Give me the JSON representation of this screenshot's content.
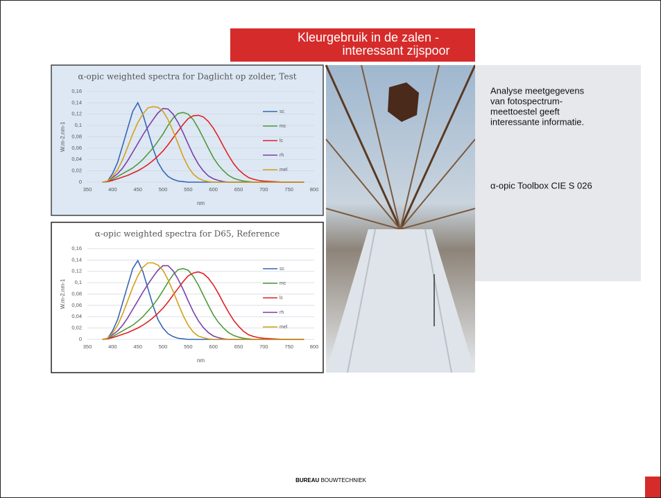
{
  "banner": {
    "lines": [
      "Kleurgebruik in de zalen -",
      "interessant zijspoor"
    ]
  },
  "side_text": {
    "paragraph_lines": [
      "Analyse meetgegevens",
      "van fotospectrum-",
      "meettoestel geeft",
      "interessante informatie."
    ],
    "note": "α-opic Toolbox CIE S 026"
  },
  "footer": {
    "bold": "BUREAU",
    "rest": "BOUWTECHNIEK"
  },
  "chart_data": [
    {
      "type": "line",
      "title": "α-opic weighted spectra for Daglicht op zolder, Test",
      "x_label": "nm",
      "y_label": "W.m-2.nm-1",
      "xlim": [
        350,
        800
      ],
      "xticks": [
        350,
        400,
        450,
        500,
        550,
        600,
        650,
        700,
        750,
        800
      ],
      "ylim": [
        0,
        0.16
      ],
      "yticks": [
        0,
        {
          "value": 0.02,
          "label": "0,02"
        },
        {
          "value": 0.04,
          "label": "0,04"
        },
        {
          "value": 0.06,
          "label": "0,06"
        },
        {
          "value": 0.08,
          "label": "0,08"
        },
        {
          "value": 0.1,
          "label": "0,1"
        },
        {
          "value": 0.12,
          "label": "0,12"
        },
        {
          "value": 0.14,
          "label": "0,14"
        },
        {
          "value": 0.16,
          "label": "0,16"
        }
      ],
      "grid": true,
      "background": "#dde8f4",
      "x": [
        380,
        390,
        400,
        410,
        420,
        430,
        440,
        450,
        460,
        470,
        480,
        490,
        500,
        510,
        520,
        530,
        540,
        550,
        560,
        570,
        580,
        590,
        600,
        610,
        620,
        630,
        640,
        650,
        660,
        670,
        680,
        690,
        700,
        740,
        780
      ],
      "series": [
        {
          "name": "sc",
          "color": "#3465b4",
          "values": [
            0,
            0.002,
            0.015,
            0.035,
            0.065,
            0.095,
            0.125,
            0.14,
            0.12,
            0.09,
            0.06,
            0.035,
            0.02,
            0.01,
            0.005,
            0.002,
            0.001,
            0,
            0,
            0,
            0,
            0,
            0,
            0,
            0,
            0,
            0,
            0,
            0,
            0,
            0,
            0,
            0,
            0,
            0
          ]
        },
        {
          "name": "mc",
          "color": "#4e9a3a",
          "values": [
            0,
            0.001,
            0.005,
            0.01,
            0.015,
            0.02,
            0.025,
            0.032,
            0.04,
            0.05,
            0.06,
            0.072,
            0.085,
            0.1,
            0.113,
            0.121,
            0.123,
            0.12,
            0.11,
            0.095,
            0.078,
            0.06,
            0.043,
            0.03,
            0.02,
            0.012,
            0.007,
            0.004,
            0.002,
            0.001,
            0,
            0,
            0,
            0,
            0
          ]
        },
        {
          "name": "lc",
          "color": "#e02020",
          "values": [
            0,
            0.001,
            0.003,
            0.006,
            0.009,
            0.012,
            0.016,
            0.02,
            0.025,
            0.031,
            0.038,
            0.046,
            0.055,
            0.066,
            0.078,
            0.09,
            0.102,
            0.112,
            0.117,
            0.118,
            0.115,
            0.107,
            0.095,
            0.08,
            0.063,
            0.047,
            0.033,
            0.022,
            0.014,
            0.008,
            0.005,
            0.003,
            0.002,
            0,
            0
          ]
        },
        {
          "name": "rh",
          "color": "#7b3fa8",
          "values": [
            0,
            0.002,
            0.008,
            0.015,
            0.025,
            0.038,
            0.053,
            0.068,
            0.083,
            0.097,
            0.11,
            0.122,
            0.13,
            0.129,
            0.12,
            0.105,
            0.087,
            0.067,
            0.048,
            0.032,
            0.02,
            0.011,
            0.006,
            0.003,
            0.001,
            0,
            0,
            0,
            0,
            0,
            0,
            0,
            0,
            0,
            0
          ]
        },
        {
          "name": "mel",
          "color": "#d4a017",
          "values": [
            0,
            0.002,
            0.01,
            0.022,
            0.04,
            0.062,
            0.085,
            0.105,
            0.12,
            0.131,
            0.133,
            0.132,
            0.125,
            0.11,
            0.09,
            0.068,
            0.045,
            0.027,
            0.014,
            0.007,
            0.003,
            0.001,
            0,
            0,
            0,
            0,
            0,
            0,
            0,
            0,
            0,
            0,
            0,
            0,
            0
          ]
        }
      ]
    },
    {
      "type": "line",
      "title": "α-opic weighted spectra for D65, Reference",
      "x_label": "nm",
      "y_label": "W.m-2.nm-1",
      "xlim": [
        350,
        800
      ],
      "xticks": [
        350,
        400,
        450,
        500,
        550,
        600,
        650,
        700,
        750,
        800
      ],
      "ylim": [
        0,
        0.16
      ],
      "yticks": [
        0,
        {
          "value": 0.02,
          "label": "0,02"
        },
        {
          "value": 0.04,
          "label": "0,04"
        },
        {
          "value": 0.06,
          "label": "0,06"
        },
        {
          "value": 0.08,
          "label": "0,08"
        },
        {
          "value": 0.1,
          "label": "0,1"
        },
        {
          "value": 0.12,
          "label": "0,12"
        },
        {
          "value": 0.14,
          "label": "0,14"
        },
        {
          "value": 0.16,
          "label": "0,16"
        }
      ],
      "grid": true,
      "background": "#ffffff",
      "x": [
        380,
        390,
        400,
        410,
        420,
        430,
        440,
        450,
        460,
        470,
        480,
        490,
        500,
        510,
        520,
        530,
        540,
        550,
        560,
        570,
        580,
        590,
        600,
        610,
        620,
        630,
        640,
        650,
        660,
        670,
        680,
        690,
        700,
        740,
        780
      ],
      "series": [
        {
          "name": "sc",
          "color": "#3465b4",
          "values": [
            0,
            0.002,
            0.015,
            0.035,
            0.065,
            0.095,
            0.125,
            0.139,
            0.12,
            0.09,
            0.06,
            0.035,
            0.02,
            0.01,
            0.005,
            0.002,
            0.001,
            0,
            0,
            0,
            0,
            0,
            0,
            0,
            0,
            0,
            0,
            0,
            0,
            0,
            0,
            0,
            0,
            0,
            0
          ]
        },
        {
          "name": "mc",
          "color": "#4e9a3a",
          "values": [
            0,
            0.001,
            0.005,
            0.01,
            0.015,
            0.02,
            0.025,
            0.032,
            0.04,
            0.05,
            0.06,
            0.072,
            0.086,
            0.101,
            0.114,
            0.123,
            0.125,
            0.122,
            0.111,
            0.096,
            0.078,
            0.06,
            0.043,
            0.03,
            0.02,
            0.012,
            0.007,
            0.004,
            0.002,
            0.001,
            0,
            0,
            0,
            0,
            0
          ]
        },
        {
          "name": "lc",
          "color": "#e02020",
          "values": [
            0,
            0.001,
            0.003,
            0.006,
            0.009,
            0.012,
            0.016,
            0.02,
            0.025,
            0.031,
            0.038,
            0.046,
            0.055,
            0.066,
            0.078,
            0.09,
            0.102,
            0.112,
            0.117,
            0.119,
            0.116,
            0.108,
            0.096,
            0.081,
            0.064,
            0.048,
            0.034,
            0.023,
            0.014,
            0.008,
            0.005,
            0.003,
            0.002,
            0,
            0
          ]
        },
        {
          "name": "rh",
          "color": "#7b3fa8",
          "values": [
            0,
            0.002,
            0.008,
            0.015,
            0.025,
            0.038,
            0.053,
            0.068,
            0.083,
            0.097,
            0.11,
            0.122,
            0.13,
            0.13,
            0.121,
            0.106,
            0.088,
            0.068,
            0.049,
            0.033,
            0.021,
            0.012,
            0.006,
            0.003,
            0.001,
            0,
            0,
            0,
            0,
            0,
            0,
            0,
            0,
            0,
            0
          ]
        },
        {
          "name": "mel",
          "color": "#d4a017",
          "values": [
            0,
            0.002,
            0.011,
            0.025,
            0.045,
            0.068,
            0.092,
            0.112,
            0.127,
            0.135,
            0.135,
            0.131,
            0.122,
            0.105,
            0.085,
            0.063,
            0.042,
            0.025,
            0.013,
            0.006,
            0.003,
            0.001,
            0,
            0,
            0,
            0,
            0,
            0,
            0,
            0,
            0,
            0,
            0,
            0,
            0
          ]
        }
      ]
    }
  ]
}
